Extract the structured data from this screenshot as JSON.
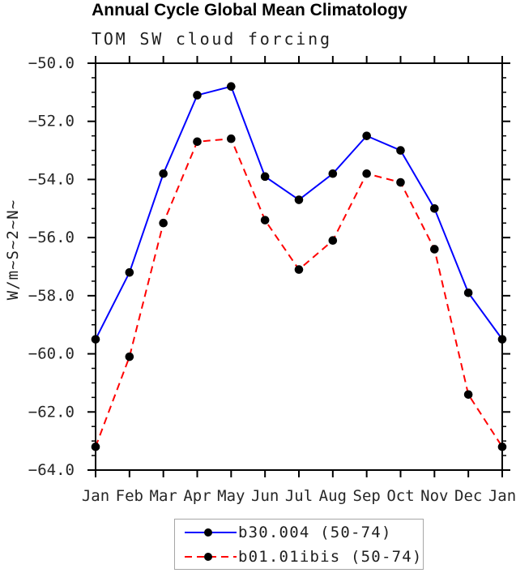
{
  "figure": {
    "title": "Annual Cycle Global Mean Climatology",
    "subtitle": "TOM SW cloud forcing",
    "y_axis_title": "W/m~S~2~N~"
  },
  "chart_data": {
    "type": "line",
    "title": "Annual Cycle Global Mean Climatology",
    "subtitle": "TOM SW cloud forcing",
    "xlabel": "",
    "ylabel": "W/m~S~2~N~",
    "categories": [
      "Jan",
      "Feb",
      "Mar",
      "Apr",
      "May",
      "Jun",
      "Jul",
      "Aug",
      "Sep",
      "Oct",
      "Nov",
      "Dec",
      "Jan"
    ],
    "ylim": [
      -64,
      -50
    ],
    "y_tick_step": 2,
    "y_minor_tick_step": 0.5,
    "y_tick_labels": [
      "−50.0",
      "−52.0",
      "−54.0",
      "−56.0",
      "−58.0",
      "−60.0",
      "−62.0",
      "−64.0"
    ],
    "grid": false,
    "legend_position": "bottom-center",
    "series": [
      {
        "name": "b30.004 (50-74)",
        "color": "#0000ff",
        "style": "solid",
        "marker": "filled-circle",
        "marker_color": "#000000",
        "values": [
          -59.5,
          -57.2,
          -53.8,
          -51.1,
          -50.8,
          -53.9,
          -54.7,
          -53.8,
          -52.5,
          -53.0,
          -55.0,
          -57.9,
          -59.5
        ]
      },
      {
        "name": "b01.01ibis (50-74)",
        "color": "#ff0000",
        "style": "dashed",
        "marker": "filled-circle",
        "marker_color": "#000000",
        "values": [
          -63.2,
          -60.1,
          -55.5,
          -52.7,
          -52.6,
          -55.4,
          -57.1,
          -56.1,
          -53.8,
          -54.1,
          -56.4,
          -61.4,
          -63.2
        ]
      }
    ]
  },
  "colors": {
    "background": "#ffffff",
    "axis": "#000000",
    "tick_text": "#262626",
    "legend_border": "#a6a6a6",
    "series_blue": "#0000ff",
    "series_red": "#ff0000",
    "marker": "#000000"
  }
}
